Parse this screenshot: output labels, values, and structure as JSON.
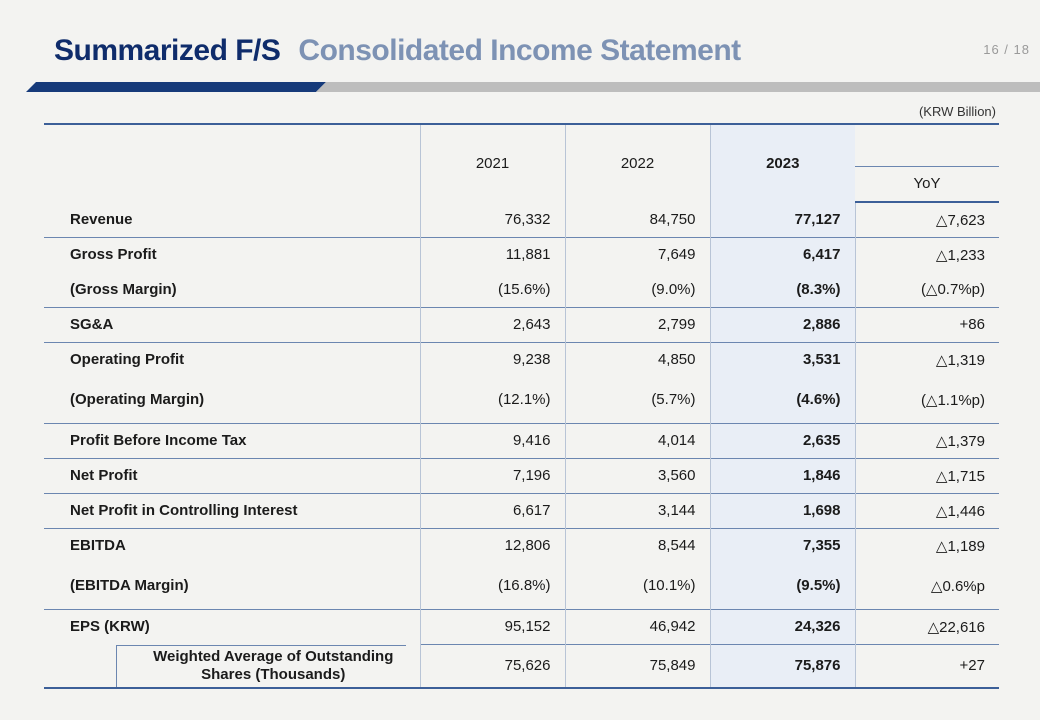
{
  "header": {
    "title": "Summarized F/S",
    "subtitle": "Consolidated Income Statement",
    "page": "16 / 18",
    "unit": "(KRW Billion)"
  },
  "columns": {
    "y2021": "2021",
    "y2022": "2022",
    "y2023": "2023",
    "yoy": "YoY"
  },
  "rows": [
    {
      "label": "Revenue",
      "y2021": "76,332",
      "y2022": "84,750",
      "y2023": "77,127",
      "yoy": "△7,623"
    },
    {
      "label": "Gross Profit",
      "y2021": "11,881",
      "y2022": "7,649",
      "y2023": "6,417",
      "yoy": "△1,233"
    },
    {
      "label": "(Gross Margin)",
      "y2021": "(15.6%)",
      "y2022": "(9.0%)",
      "y2023": "(8.3%)",
      "yoy": "(△0.7%p)"
    },
    {
      "label": "SG&A",
      "y2021": "2,643",
      "y2022": "2,799",
      "y2023": "2,886",
      "yoy": "+86"
    },
    {
      "label": "Operating Profit",
      "y2021": "9,238",
      "y2022": "4,850",
      "y2023": "3,531",
      "yoy": "△1,319"
    },
    {
      "label": "(Operating Margin)",
      "y2021": "(12.1%)",
      "y2022": "(5.7%)",
      "y2023": "(4.6%)",
      "yoy": "(△1.1%p)"
    },
    {
      "label": "Profit Before Income Tax",
      "y2021": "9,416",
      "y2022": "4,014",
      "y2023": "2,635",
      "yoy": "△1,379"
    },
    {
      "label": "Net Profit",
      "y2021": "7,196",
      "y2022": "3,560",
      "y2023": "1,846",
      "yoy": "△1,715"
    },
    {
      "label": "Net Profit in Controlling Interest",
      "y2021": "6,617",
      "y2022": "3,144",
      "y2023": "1,698",
      "yoy": "△1,446"
    },
    {
      "label": "EBITDA",
      "y2021": "12,806",
      "y2022": "8,544",
      "y2023": "7,355",
      "yoy": "△1,189"
    },
    {
      "label": "(EBITDA Margin)",
      "y2021": "(16.8%)",
      "y2022": "(10.1%)",
      "y2023": "(9.5%)",
      "yoy": "△0.6%p"
    },
    {
      "label": "EPS (KRW)",
      "y2021": "95,152",
      "y2022": "46,942",
      "y2023": "24,326",
      "yoy": "△22,616"
    },
    {
      "label": "Weighted Average of Outstanding Shares (Thousands)",
      "y2021": "75,626",
      "y2022": "75,849",
      "y2023": "75,876",
      "yoy": "+27"
    }
  ]
}
